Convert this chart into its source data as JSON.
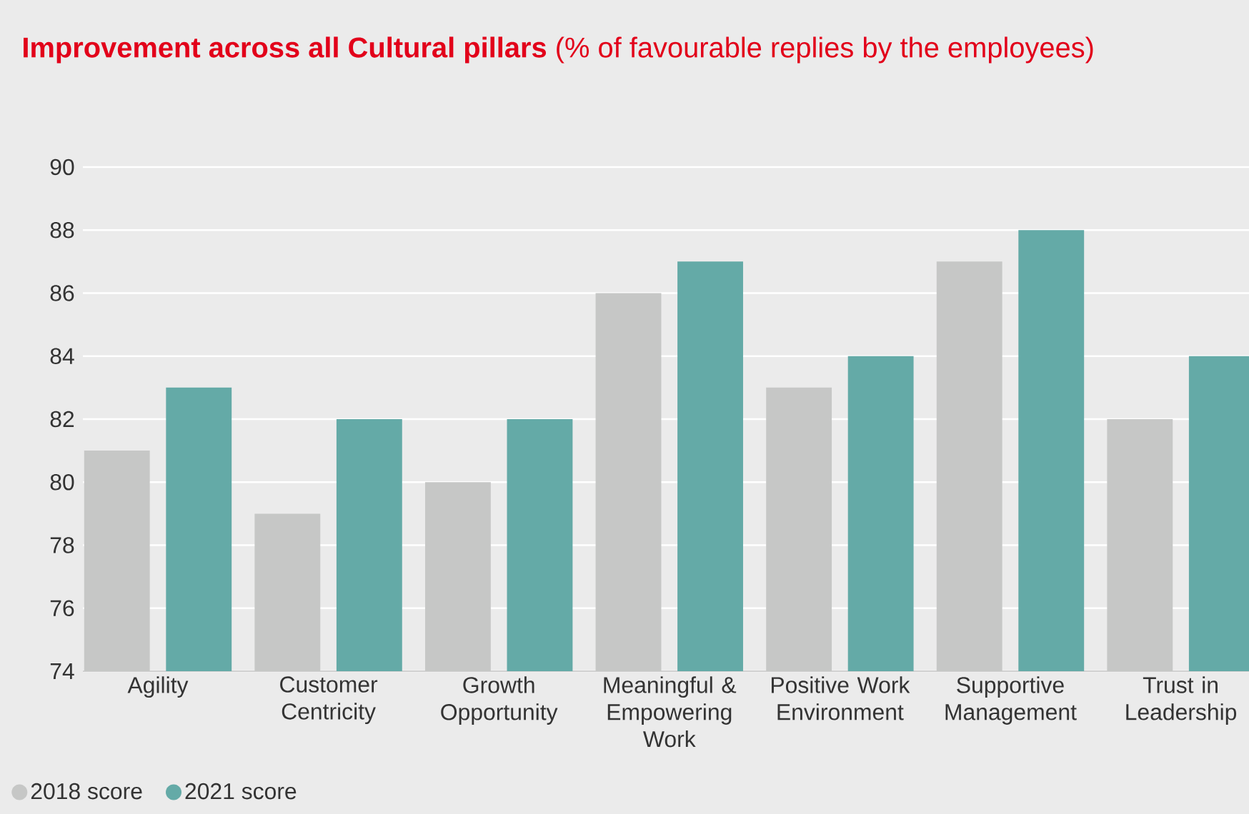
{
  "chart_data": {
    "type": "bar",
    "title": "**Improvement across all Cultural pillars** (% of favourable replies by the employees)",
    "categories": [
      "Agility",
      "Customer Centricity",
      "Growth Opportunity",
      "Meaningful & Empowering Work",
      "Positive Work Environment",
      "Supportive Management",
      "Trust in Leadership"
    ],
    "series": [
      {
        "name": "2018 score",
        "color": "#c6c7c6",
        "values": [
          81,
          79,
          80,
          86,
          83,
          87,
          82
        ]
      },
      {
        "name": "2021 score",
        "color": "#64aaa7",
        "values": [
          83,
          82,
          82,
          87,
          84,
          88,
          84
        ]
      }
    ],
    "ylim": [
      74,
      90
    ],
    "yticks": [
      74,
      76,
      78,
      80,
      82,
      84,
      86,
      88,
      90
    ],
    "grid": "y",
    "legend": "bottom"
  }
}
